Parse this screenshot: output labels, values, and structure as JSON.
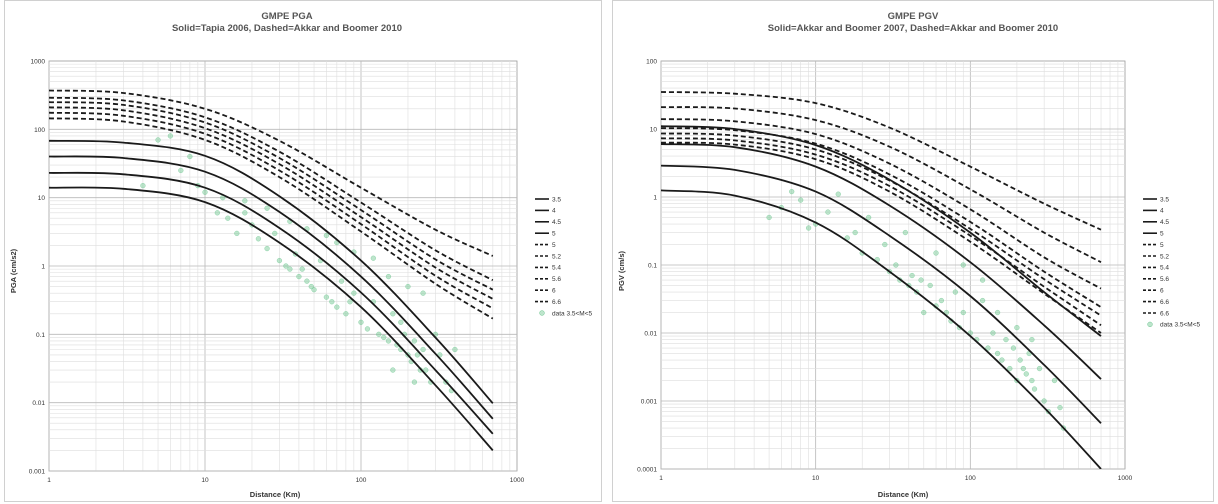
{
  "chart_data": [
    {
      "type": "line",
      "title": "GMPE PGA",
      "subtitle": "Solid=Tapia 2006, Dashed=Akkar and Boomer 2010",
      "xlabel": "Distance (Km)",
      "ylabel": "PGA (cm/s2)",
      "xscale": "log",
      "yscale": "log",
      "xlim": [
        1,
        1000
      ],
      "ylim": [
        0.001,
        1000
      ],
      "xticks": [
        "1",
        "10",
        "100",
        "1000"
      ],
      "yticks": [
        "0.001",
        "0.01",
        "0.1",
        "1",
        "10",
        "100",
        "1000"
      ],
      "grid": true,
      "legend_position": "right",
      "series": [
        {
          "name": "3.5",
          "style": "solid",
          "x": [
            1,
            3,
            10,
            30,
            100,
            300,
            700
          ],
          "values": [
            14,
            13.5,
            8.6,
            2.2,
            0.25,
            0.018,
            0.002
          ]
        },
        {
          "name": "4",
          "style": "solid",
          "x": [
            1,
            3,
            10,
            30,
            100,
            300,
            700
          ],
          "values": [
            23,
            22,
            14,
            3.6,
            0.41,
            0.03,
            0.0035
          ]
        },
        {
          "name": "4.5",
          "style": "solid",
          "x": [
            1,
            3,
            10,
            30,
            100,
            300,
            700
          ],
          "values": [
            40,
            38,
            24,
            6.2,
            0.7,
            0.052,
            0.0058
          ]
        },
        {
          "name": "5",
          "style": "solid",
          "x": [
            1,
            3,
            10,
            30,
            100,
            300,
            700
          ],
          "values": [
            68,
            64,
            41,
            10.5,
            1.2,
            0.09,
            0.0098
          ]
        },
        {
          "name": "5",
          "style": "dashed",
          "x": [
            1,
            3,
            10,
            30,
            100,
            300,
            700
          ],
          "values": [
            145,
            130,
            70,
            20,
            3.2,
            0.55,
            0.17
          ]
        },
        {
          "name": "5.2",
          "style": "dashed",
          "x": [
            1,
            3,
            10,
            30,
            100,
            300,
            700
          ],
          "values": [
            175,
            158,
            86,
            25,
            4.1,
            0.72,
            0.24
          ]
        },
        {
          "name": "5.4",
          "style": "dashed",
          "x": [
            1,
            3,
            10,
            30,
            100,
            300,
            700
          ],
          "values": [
            210,
            190,
            104,
            31,
            5.2,
            0.95,
            0.33
          ]
        },
        {
          "name": "5.6",
          "style": "dashed",
          "x": [
            1,
            3,
            10,
            30,
            100,
            300,
            700
          ],
          "values": [
            250,
            228,
            126,
            38,
            6.6,
            1.25,
            0.45
          ]
        },
        {
          "name": "6",
          "style": "dashed",
          "x": [
            1,
            3,
            10,
            30,
            100,
            300,
            700
          ],
          "values": [
            290,
            265,
            150,
            47,
            8.5,
            1.7,
            0.62
          ]
        },
        {
          "name": "6.6",
          "style": "dashed",
          "x": [
            1,
            3,
            10,
            30,
            100,
            300,
            700
          ],
          "values": [
            370,
            340,
            200,
            68,
            14,
            3.4,
            1.4
          ]
        }
      ],
      "scatter": {
        "name": "data 3.5<M<5",
        "color": "#6cc58f",
        "x": [
          4,
          5,
          6,
          7,
          8,
          9,
          10,
          12,
          14,
          16,
          18,
          20,
          22,
          25,
          28,
          30,
          33,
          35,
          38,
          40,
          42,
          45,
          48,
          50,
          55,
          60,
          65,
          70,
          75,
          80,
          85,
          90,
          100,
          110,
          120,
          130,
          140,
          150,
          160,
          170,
          180,
          190,
          200,
          210,
          220,
          230,
          240,
          250,
          260,
          280,
          300,
          320,
          350,
          380,
          400,
          250,
          200,
          150,
          120,
          90,
          70,
          60,
          45,
          35,
          25,
          18,
          13,
          160,
          180,
          220
        ],
        "values": [
          15,
          70,
          80,
          25,
          40,
          15,
          12,
          6,
          5,
          3,
          6,
          4,
          2.5,
          1.8,
          3,
          1.2,
          1,
          0.9,
          1.5,
          0.7,
          0.9,
          0.6,
          0.5,
          0.45,
          1.2,
          0.35,
          0.3,
          0.25,
          0.6,
          0.2,
          0.3,
          0.4,
          0.15,
          0.12,
          0.3,
          0.1,
          0.09,
          0.08,
          0.2,
          0.07,
          0.06,
          0.1,
          0.05,
          0.04,
          0.08,
          0.05,
          0.03,
          0.06,
          0.03,
          0.02,
          0.1,
          0.05,
          0.02,
          0.015,
          0.06,
          0.4,
          0.5,
          0.7,
          1.3,
          1.6,
          2.2,
          2.8,
          3.5,
          4.5,
          7,
          9,
          10,
          0.03,
          0.15,
          0.02
        ]
      }
    },
    {
      "type": "line",
      "title": "GMPE PGV",
      "subtitle": "Solid=Akkar and Boomer 2007, Dashed=Akkar and Boomer 2010",
      "xlabel": "Distance (Km)",
      "ylabel": "PGV (cm/s)",
      "xscale": "log",
      "yscale": "log",
      "xlim": [
        1,
        1000
      ],
      "ylim": [
        0.0001,
        100
      ],
      "xticks": [
        "1",
        "10",
        "100",
        "1000"
      ],
      "yticks": [
        "0.0001",
        "0.001",
        "0.01",
        "0.1",
        "1",
        "10",
        "100"
      ],
      "grid": true,
      "legend_position": "right",
      "series": [
        {
          "name": "3.5",
          "style": "solid",
          "x": [
            1,
            3,
            10,
            30,
            100,
            300,
            700
          ],
          "values": [
            1.25,
            1.05,
            0.42,
            0.08,
            0.009,
            0.0008,
            0.0001
          ]
        },
        {
          "name": "4",
          "style": "solid",
          "x": [
            1,
            3,
            10,
            30,
            100,
            300,
            700
          ],
          "values": [
            2.9,
            2.5,
            1.2,
            0.27,
            0.035,
            0.0034,
            0.00047
          ]
        },
        {
          "name": "4.5",
          "style": "solid",
          "x": [
            1,
            3,
            10,
            30,
            100,
            300,
            700
          ],
          "values": [
            6.0,
            5.4,
            2.8,
            0.75,
            0.11,
            0.013,
            0.0021
          ]
        },
        {
          "name": "5",
          "style": "solid",
          "x": [
            1,
            3,
            10,
            30,
            100,
            300,
            700
          ],
          "values": [
            11,
            10,
            5.8,
            1.8,
            0.3,
            0.04,
            0.009
          ]
        },
        {
          "name": "5",
          "style": "dashed",
          "x": [
            1,
            3,
            10,
            30,
            100,
            300,
            700
          ],
          "values": [
            6.3,
            5.9,
            3.6,
            1.2,
            0.22,
            0.038,
            0.01
          ]
        },
        {
          "name": "5.2",
          "style": "dashed",
          "x": [
            1,
            3,
            10,
            30,
            100,
            300,
            700
          ],
          "values": [
            7.3,
            6.8,
            4.2,
            1.45,
            0.27,
            0.048,
            0.013
          ]
        },
        {
          "name": "5.4",
          "style": "dashed",
          "x": [
            1,
            3,
            10,
            30,
            100,
            300,
            700
          ],
          "values": [
            8.6,
            8.0,
            5.0,
            1.75,
            0.34,
            0.062,
            0.018
          ]
        },
        {
          "name": "5.6",
          "style": "dashed",
          "x": [
            1,
            3,
            10,
            30,
            100,
            300,
            700
          ],
          "values": [
            10.3,
            9.6,
            6.1,
            2.15,
            0.43,
            0.08,
            0.024
          ]
        },
        {
          "name": "6",
          "style": "dashed",
          "x": [
            1,
            3,
            10,
            30,
            100,
            300,
            700
          ],
          "values": [
            14,
            13,
            8.4,
            3.1,
            0.66,
            0.13,
            0.045
          ]
        },
        {
          "name": "6.6",
          "style": "dashed",
          "x": [
            1,
            3,
            10,
            30,
            100,
            300,
            700
          ],
          "values": [
            21,
            20,
            13.5,
            5.5,
            1.3,
            0.3,
            0.11
          ]
        },
        {
          "name": "6.6",
          "style": "dashed",
          "x": [
            1,
            3,
            10,
            30,
            100,
            300,
            700
          ],
          "values": [
            35,
            33,
            24,
            10.5,
            2.8,
            0.8,
            0.33
          ]
        }
      ],
      "scatter": {
        "name": "data 3.5<M<5",
        "color": "#6cc58f",
        "x": [
          5,
          6,
          7,
          8,
          9,
          10,
          12,
          14,
          16,
          18,
          20,
          22,
          25,
          28,
          30,
          33,
          35,
          38,
          40,
          42,
          45,
          48,
          50,
          55,
          60,
          65,
          70,
          75,
          80,
          85,
          90,
          100,
          110,
          120,
          130,
          140,
          150,
          160,
          170,
          180,
          190,
          200,
          210,
          220,
          230,
          240,
          250,
          260,
          280,
          300,
          320,
          350,
          380,
          400,
          150,
          200,
          250,
          120,
          90,
          60
        ],
        "values": [
          0.5,
          0.7,
          1.2,
          0.9,
          0.35,
          0.4,
          0.6,
          1.1,
          0.25,
          0.3,
          0.15,
          0.5,
          0.12,
          0.2,
          0.08,
          0.1,
          0.06,
          0.3,
          0.05,
          0.07,
          0.04,
          0.06,
          0.02,
          0.05,
          0.025,
          0.03,
          0.02,
          0.015,
          0.04,
          0.012,
          0.02,
          0.01,
          0.008,
          0.03,
          0.006,
          0.01,
          0.005,
          0.004,
          0.008,
          0.003,
          0.006,
          0.002,
          0.004,
          0.003,
          0.0025,
          0.005,
          0.002,
          0.0015,
          0.003,
          0.001,
          0.0007,
          0.002,
          0.0008,
          0.0004,
          0.02,
          0.012,
          0.008,
          0.06,
          0.1,
          0.15
        ]
      }
    }
  ]
}
